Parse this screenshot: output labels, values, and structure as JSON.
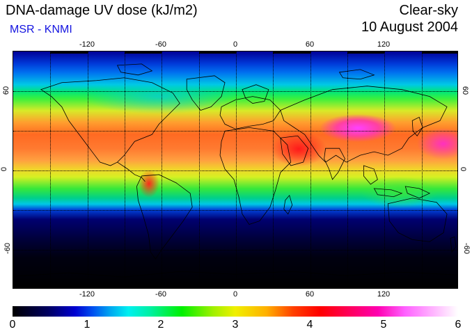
{
  "header": {
    "title": "DNA-damage UV dose (kJ/m2)",
    "subtitle": "MSR - KNMI",
    "condition": "Clear-sky",
    "date": "10 August 2004"
  },
  "map": {
    "lon_labels": [
      "-120",
      "-60",
      "0",
      "60",
      "120"
    ],
    "lat_labels": [
      "60",
      "0",
      "-60"
    ],
    "projection": "equirectangular",
    "grid": "dotted 30° graticule"
  },
  "colorbar": {
    "ticks": [
      "0",
      "1",
      "2",
      "3",
      "4",
      "5",
      "6"
    ],
    "min": 0,
    "max": 6,
    "colors": [
      "#000000",
      "#0000d0",
      "#00f0f0",
      "#00f000",
      "#f0f000",
      "#ff0000",
      "#ff00b0",
      "#ffffff"
    ]
  }
}
